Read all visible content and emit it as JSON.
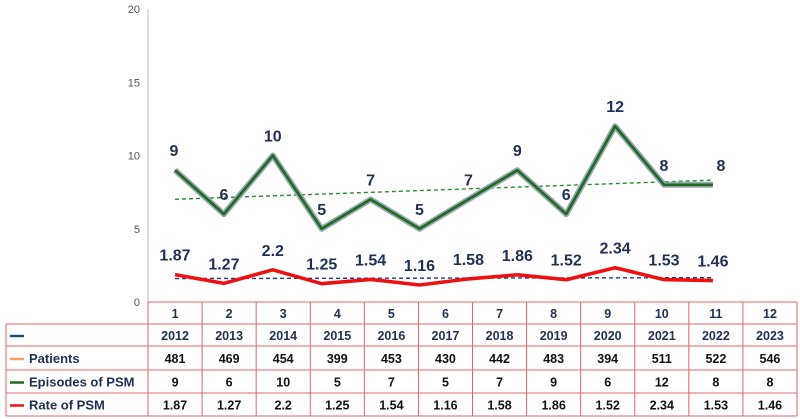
{
  "chart_data": {
    "type": "line",
    "x": [
      1,
      2,
      3,
      4,
      5,
      6,
      7,
      8,
      9,
      10,
      11,
      12
    ],
    "years": [
      "2012",
      "2013",
      "2014",
      "2015",
      "2016",
      "2017",
      "2018",
      "2019",
      "2020",
      "2021",
      "2022",
      "2023"
    ],
    "ylim": [
      0,
      20
    ],
    "yticks": [
      "0",
      "5",
      "10",
      "15",
      "20"
    ],
    "series": [
      {
        "name": "Episodes of PSM",
        "color": "#1e6b1e",
        "values": [
          9,
          6,
          10,
          5,
          7,
          5,
          7,
          9,
          6,
          12,
          8,
          8
        ],
        "labels": [
          "9",
          "6",
          "10",
          "5",
          "7",
          "5",
          "7",
          "9",
          "6",
          "12",
          "8",
          "8"
        ],
        "trendline": true
      },
      {
        "name": "Rate of PSM",
        "color": "#ee1111",
        "values": [
          1.87,
          1.27,
          2.2,
          1.25,
          1.54,
          1.16,
          1.58,
          1.86,
          1.52,
          2.34,
          1.53,
          1.46
        ],
        "labels": [
          "1.87",
          "1.27",
          "2.2",
          "1.25",
          "1.54",
          "1.16",
          "1.58",
          "1.86",
          "1.52",
          "2.34",
          "1.53",
          "1.46"
        ],
        "trendline": true
      }
    ],
    "table": {
      "rows": [
        {
          "name": "",
          "color": "#1f4e79",
          "values": [
            "2012",
            "2013",
            "2014",
            "2015",
            "2016",
            "2017",
            "2018",
            "2019",
            "2020",
            "2021",
            "2022",
            "2023"
          ]
        },
        {
          "name": "Patients",
          "color": "#f4a460",
          "values": [
            "481",
            "469",
            "454",
            "399",
            "453",
            "430",
            "442",
            "483",
            "394",
            "511",
            "522",
            "546"
          ]
        },
        {
          "name": "Episodes of PSM",
          "color": "#1e6b1e",
          "values": [
            "9",
            "6",
            "10",
            "5",
            "7",
            "5",
            "7",
            "9",
            "6",
            "12",
            "8",
            "8"
          ]
        },
        {
          "name": "Rate of PSM",
          "color": "#ee1111",
          "values": [
            "1.87",
            "1.27",
            "2.2",
            "1.25",
            "1.54",
            "1.16",
            "1.58",
            "1.86",
            "1.52",
            "2.34",
            "1.53",
            "1.46"
          ]
        }
      ]
    },
    "grid": false,
    "legend": "table-left"
  }
}
